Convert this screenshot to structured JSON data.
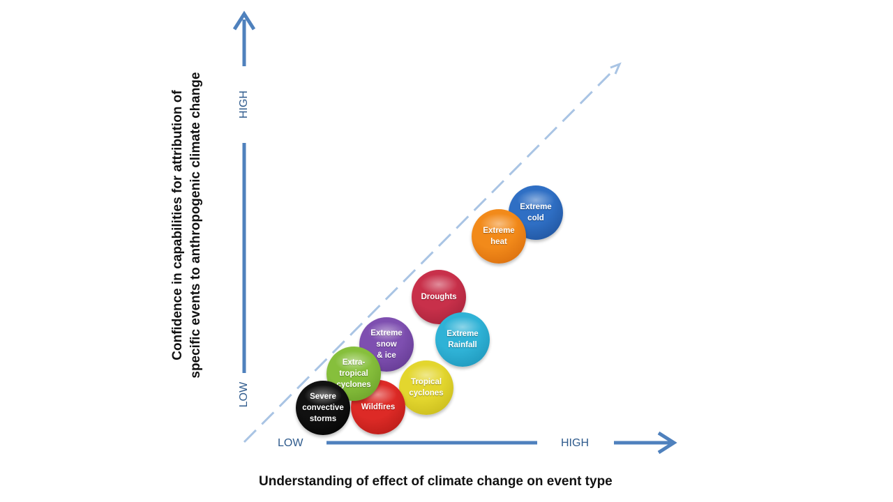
{
  "axes": {
    "y_title_line1": "Confidence in capabilities for attribution of",
    "y_title_line2": "specific events to anthropogenic climate change",
    "x_title": "Understanding of effect of climate change on event type",
    "x_low": "LOW",
    "x_high": "HIGH",
    "y_low": "LOW",
    "y_high": "HIGH"
  },
  "colors": {
    "axis_arrow": "#4f81bd",
    "dashed_line": "#a9c4e4",
    "tick_text": "#2e5a8c"
  },
  "bubbles": [
    {
      "id": "extreme-cold",
      "label": "Extreme\ncold",
      "color": "#2f6fc4",
      "dark": "#1c4c93"
    },
    {
      "id": "extreme-heat",
      "label": "Extreme\nheat",
      "color": "#f28a1a",
      "dark": "#d2660a"
    },
    {
      "id": "droughts",
      "label": "Droughts",
      "color": "#c8304a",
      "dark": "#9c1f36"
    },
    {
      "id": "extreme-rainfall",
      "label": "Extreme\nRainfall",
      "color": "#2fb2d6",
      "dark": "#1a8fb3"
    },
    {
      "id": "extreme-snow-ice",
      "label": "Extreme\nsnow\n& ice",
      "color": "#7e4fb0",
      "dark": "#5c3489"
    },
    {
      "id": "tropical-cyclones",
      "label": "Tropical\ncyclones",
      "color": "#e3d62e",
      "dark": "#c1b318"
    },
    {
      "id": "extra-tropical-cyclones",
      "label": "Extra-\ntropical\ncyclones",
      "color": "#86bf3c",
      "dark": "#659a25"
    },
    {
      "id": "wildfires",
      "label": "Wildfires",
      "color": "#dd2a26",
      "dark": "#ad1814"
    },
    {
      "id": "severe-convective-storms",
      "label": "Severe\nconvective\nstorms",
      "color": "#111111",
      "dark": "#000000"
    }
  ]
}
